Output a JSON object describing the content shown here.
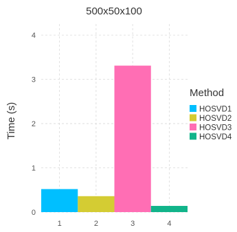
{
  "chart_data": {
    "type": "bar",
    "title": "500x50x100",
    "xlabel": "",
    "ylabel": "Time (s)",
    "categories": [
      "1",
      "2",
      "3",
      "4"
    ],
    "values": [
      0.52,
      0.36,
      3.31,
      0.14
    ],
    "bar_colors": [
      "#00bfff",
      "#d4cc33",
      "#ff6eb4",
      "#11b48a"
    ],
    "ylim": [
      0,
      4.25
    ],
    "xlim": [
      0.5,
      4.5
    ],
    "yticks": [
      0,
      1,
      2,
      3,
      4
    ],
    "xticks": [
      "1",
      "2",
      "3",
      "4"
    ],
    "grid": true,
    "legend": {
      "title": "Method",
      "placement": "right",
      "entries": [
        {
          "label": "HOSVD1",
          "color": "#00bfff"
        },
        {
          "label": "HOSVD2",
          "color": "#d4cc33"
        },
        {
          "label": "HOSVD3",
          "color": "#ff6eb4"
        },
        {
          "label": "HOSVD4",
          "color": "#11b48a"
        }
      ]
    }
  }
}
